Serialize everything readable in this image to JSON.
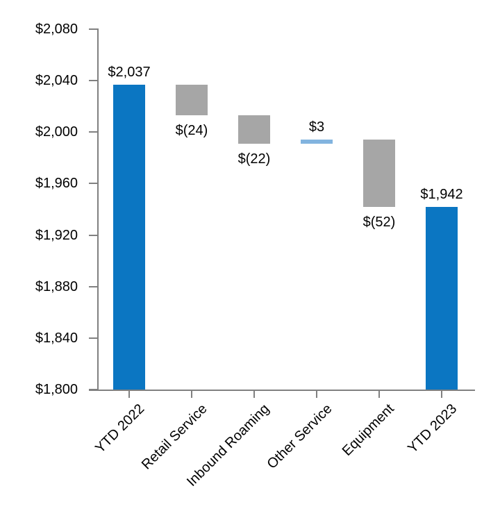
{
  "chart_data": {
    "type": "bar",
    "subtype": "waterfall",
    "title": "",
    "xlabel": "",
    "ylabel": "",
    "categories": [
      "YTD 2022",
      "Retail Service",
      "Inbound Roaming",
      "Other Service",
      "Equipment",
      "YTD 2023"
    ],
    "bars": [
      {
        "category": "YTD 2022",
        "role": "total",
        "start": 1800,
        "end": 2037,
        "value": 2037,
        "label": "$2,037",
        "label_position": "above",
        "color_key": "blue"
      },
      {
        "category": "Retail Service",
        "role": "decrease",
        "start": 2037,
        "end": 2013,
        "value": -24,
        "label": "$(24)",
        "label_position": "below",
        "color_key": "gray"
      },
      {
        "category": "Inbound Roaming",
        "role": "decrease",
        "start": 2013,
        "end": 1991,
        "value": -22,
        "label": "$(22)",
        "label_position": "below",
        "color_key": "gray"
      },
      {
        "category": "Other Service",
        "role": "increase",
        "start": 1991,
        "end": 1994,
        "value": 3,
        "label": "$3",
        "label_position": "above",
        "color_key": "lightblue"
      },
      {
        "category": "Equipment",
        "role": "decrease",
        "start": 1994,
        "end": 1942,
        "value": -52,
        "label": "$(52)",
        "label_position": "below",
        "color_key": "gray"
      },
      {
        "category": "YTD 2023",
        "role": "total",
        "start": 1800,
        "end": 1942,
        "value": 1942,
        "label": "$1,942",
        "label_position": "above",
        "color_key": "blue"
      }
    ],
    "y_axis": {
      "min": 1800,
      "max": 2080,
      "step": 40,
      "tick_labels": [
        "$1,800",
        "$1,840",
        "$1,880",
        "$1,920",
        "$1,960",
        "$2,000",
        "$2,040",
        "$2,080"
      ]
    },
    "x_axis": {
      "label_rotation_degrees": -45
    },
    "legend": {
      "shown": false
    },
    "grid": false,
    "colors": {
      "blue": "#0b76c2",
      "gray": "#a6a6a6",
      "lightblue": "#82b4df",
      "axis": "#808080",
      "text": "#000000",
      "background": "#ffffff"
    }
  }
}
